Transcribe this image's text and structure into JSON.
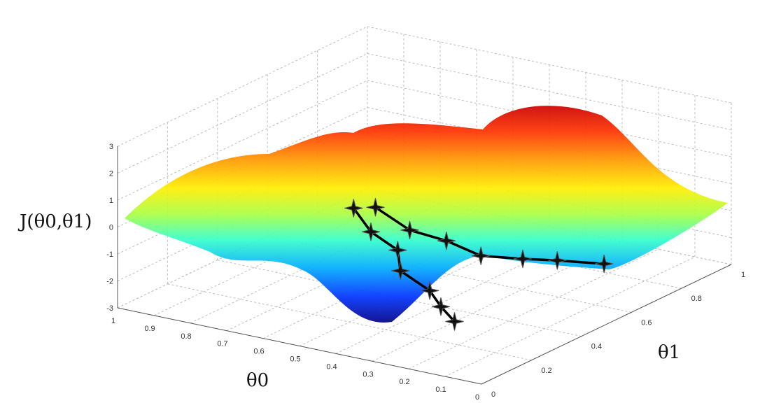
{
  "chart_data": {
    "type": "surface3d",
    "zlabel": "J(θ0,θ1)",
    "xlabel": "θ0",
    "ylabel": "θ1",
    "z_ticks": [
      "3",
      "2",
      "1",
      "0",
      "-1",
      "-2",
      "-3"
    ],
    "x_ticks": [
      "1",
      "0.9",
      "0.8",
      "0.7",
      "0.6",
      "0.5",
      "0.4",
      "0.3",
      "0.2",
      "0.1",
      "0"
    ],
    "y_ticks": [
      "0",
      "0.2",
      "0.4",
      "0.6",
      "0.8",
      "1"
    ],
    "xlim": [
      0,
      1
    ],
    "ylim": [
      0,
      1
    ],
    "zlim": [
      -3,
      3
    ],
    "grid": true,
    "colormap": "jet",
    "series": [
      {
        "color": "#000000",
        "marker": "star",
        "points": [
          {
            "theta0": 0.42,
            "theta1": 0.1,
            "J": 1.9
          },
          {
            "theta0": 0.4,
            "theta1": 0.14,
            "J": 0.9
          },
          {
            "theta0": 0.34,
            "theta1": 0.16,
            "J": 0.3
          },
          {
            "theta0": 0.36,
            "theta1": 0.2,
            "J": -0.7
          },
          {
            "theta0": 0.3,
            "theta1": 0.23,
            "J": -1.4
          },
          {
            "theta0": 0.29,
            "theta1": 0.26,
            "J": -2.1
          },
          {
            "theta0": 0.28,
            "theta1": 0.3,
            "J": -2.8
          }
        ]
      },
      {
        "color": "#000000",
        "marker": "star",
        "points": [
          {
            "theta0": 0.36,
            "theta1": 0.1,
            "J": 2.1
          },
          {
            "theta0": 0.3,
            "theta1": 0.15,
            "J": 1.2
          },
          {
            "theta0": 0.22,
            "theta1": 0.18,
            "J": 0.9
          },
          {
            "theta0": 0.18,
            "theta1": 0.26,
            "J": 0.1
          },
          {
            "theta0": 0.12,
            "theta1": 0.34,
            "J": -0.2
          },
          {
            "theta0": 0.08,
            "theta1": 0.42,
            "J": -0.5
          },
          {
            "theta0": 0.02,
            "theta1": 0.52,
            "J": -0.9
          }
        ]
      }
    ]
  }
}
